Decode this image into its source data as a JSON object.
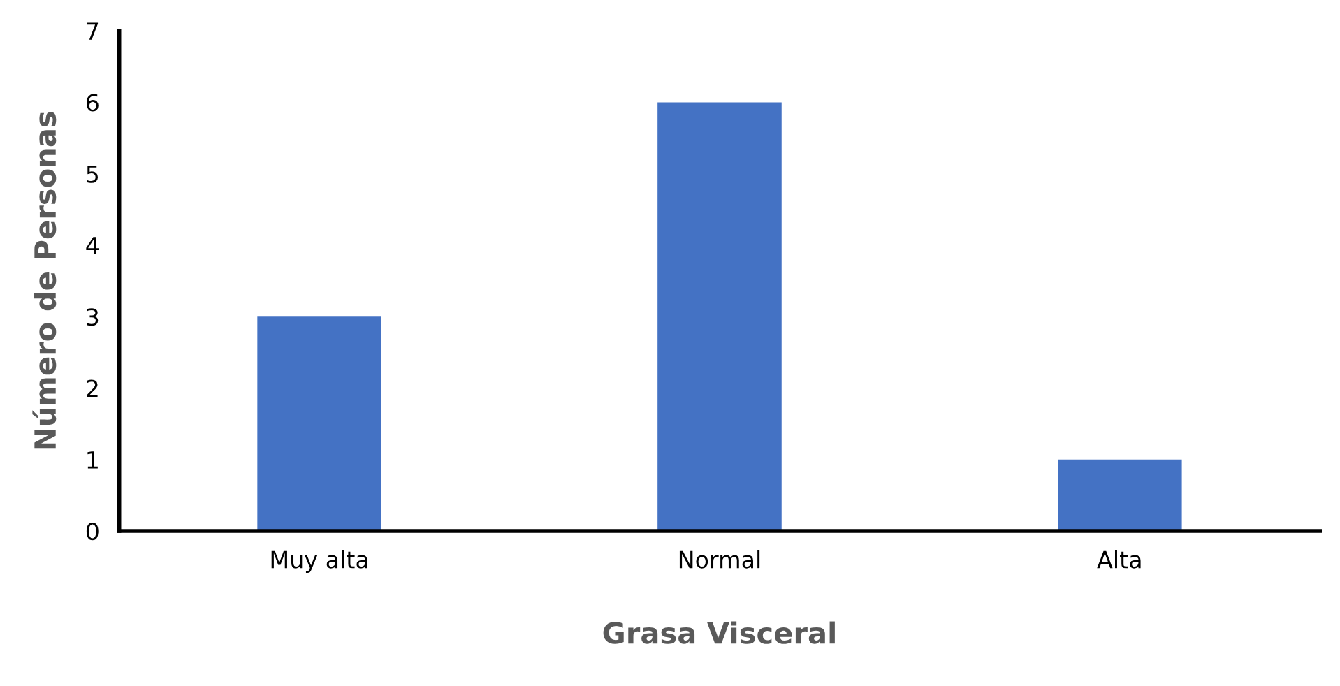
{
  "chart_data": {
    "type": "bar",
    "xlabel": "Grasa Visceral",
    "ylabel": "Número de Personas",
    "categories": [
      "Muy alta",
      "Normal",
      "Alta"
    ],
    "values": [
      3,
      6,
      1
    ],
    "color": "#4472c4",
    "ylim": [
      0,
      7
    ],
    "yticks": [
      0,
      1,
      2,
      3,
      4,
      5,
      6,
      7
    ],
    "grid": false,
    "legend": false
  }
}
